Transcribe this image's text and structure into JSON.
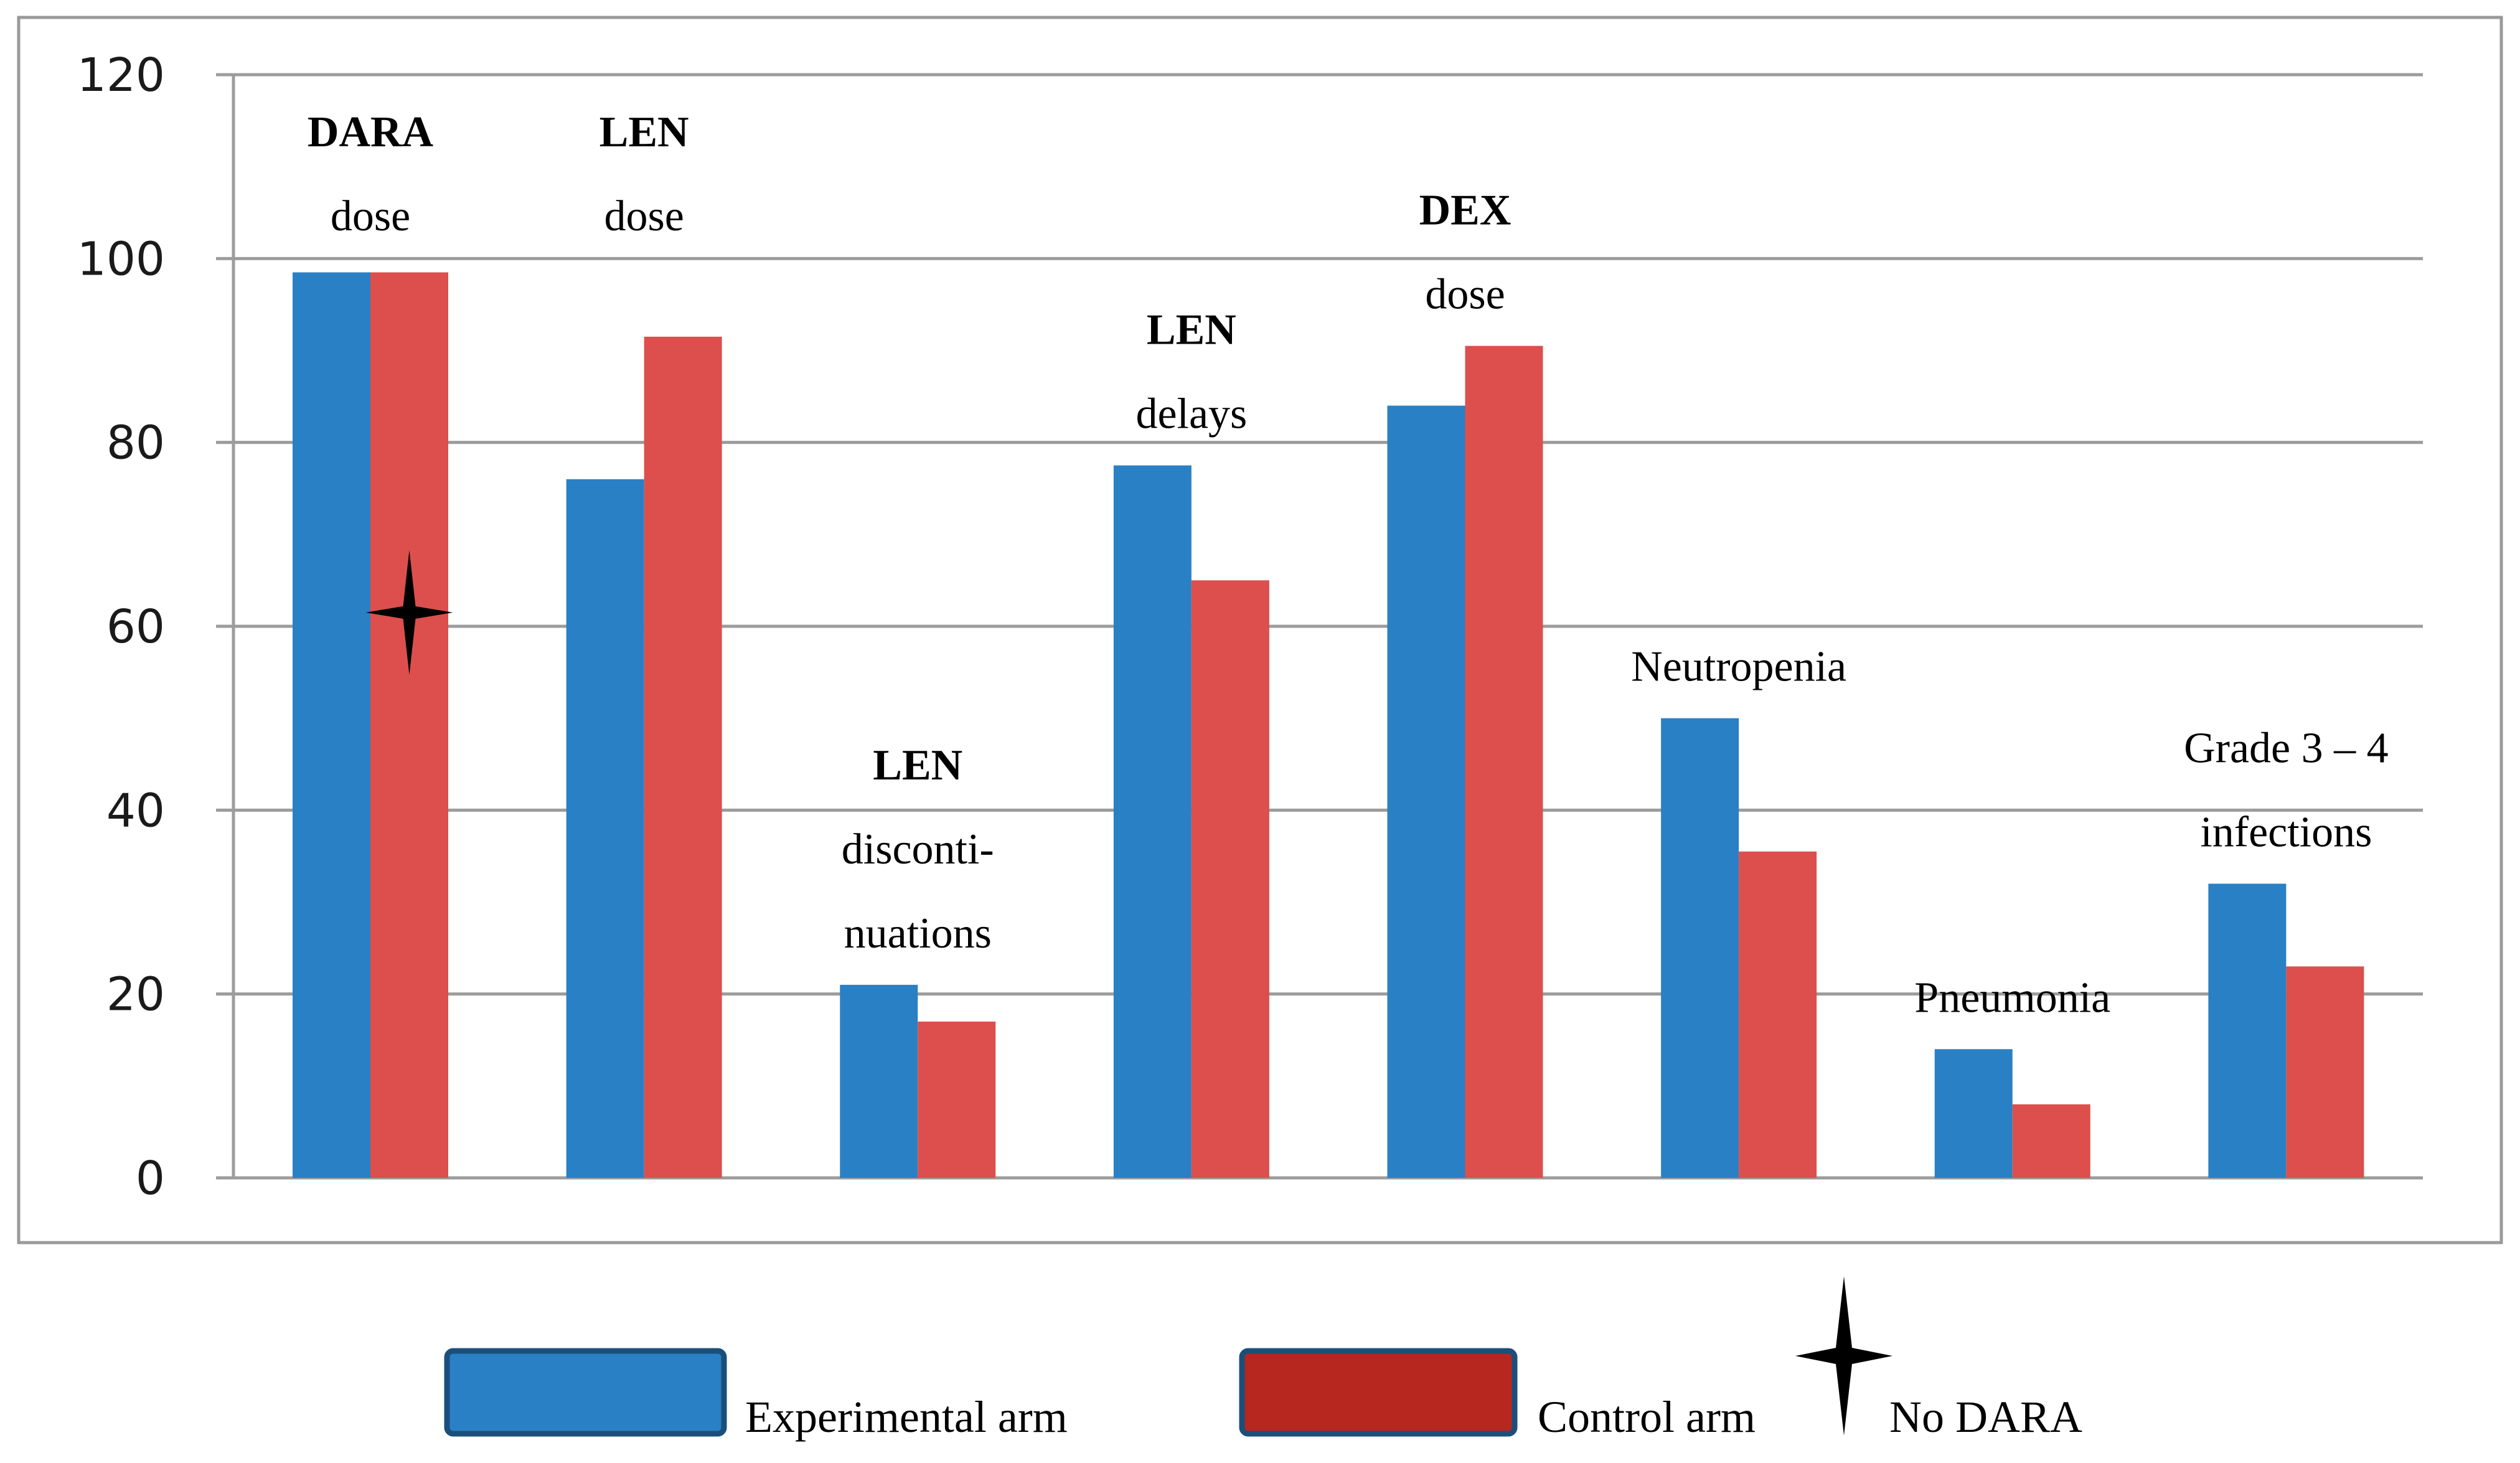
{
  "chart_data": {
    "type": "bar",
    "ylim": [
      0,
      120
    ],
    "yticks": [
      "0",
      "20",
      "40",
      "60",
      "80",
      "100",
      "120"
    ],
    "grid": true,
    "categories": [
      {
        "bold": "DARA",
        "text": [
          "dose"
        ]
      },
      {
        "bold": "LEN",
        "text": [
          "dose"
        ]
      },
      {
        "bold": "LEN",
        "text": [
          "disconti-",
          "nuations"
        ]
      },
      {
        "bold": "LEN",
        "text": [
          "delays"
        ]
      },
      {
        "bold": "DEX",
        "text": [
          "dose"
        ]
      },
      {
        "bold": "",
        "text": [
          "Neutropenia"
        ]
      },
      {
        "bold": "",
        "text": [
          "Pneumonia"
        ]
      },
      {
        "bold": "",
        "text": [
          "Grade 3 – 4",
          "infections"
        ]
      }
    ],
    "series": [
      {
        "name": "Experimental arm",
        "color": "#2a80c4",
        "values": [
          98.5,
          76,
          21,
          77.5,
          84,
          50,
          14,
          32
        ]
      },
      {
        "name": "Control arm",
        "color": "#dc4f4d",
        "values": [
          98.5,
          91.5,
          17,
          65,
          90.5,
          35.5,
          8,
          23
        ]
      }
    ],
    "marker": {
      "label": "No DARA",
      "category_index": 0,
      "series_index": 1,
      "y": 61.5
    },
    "legend": {
      "position": "bottom",
      "items": [
        {
          "label": "Experimental arm",
          "color": "#2a80c4",
          "border": "#1b4f7a"
        },
        {
          "label": "Control arm",
          "color": "#b7261f",
          "border": "#1b4f7a"
        },
        {
          "label": "No DARA",
          "icon": "four-point-star-icon"
        }
      ]
    }
  }
}
